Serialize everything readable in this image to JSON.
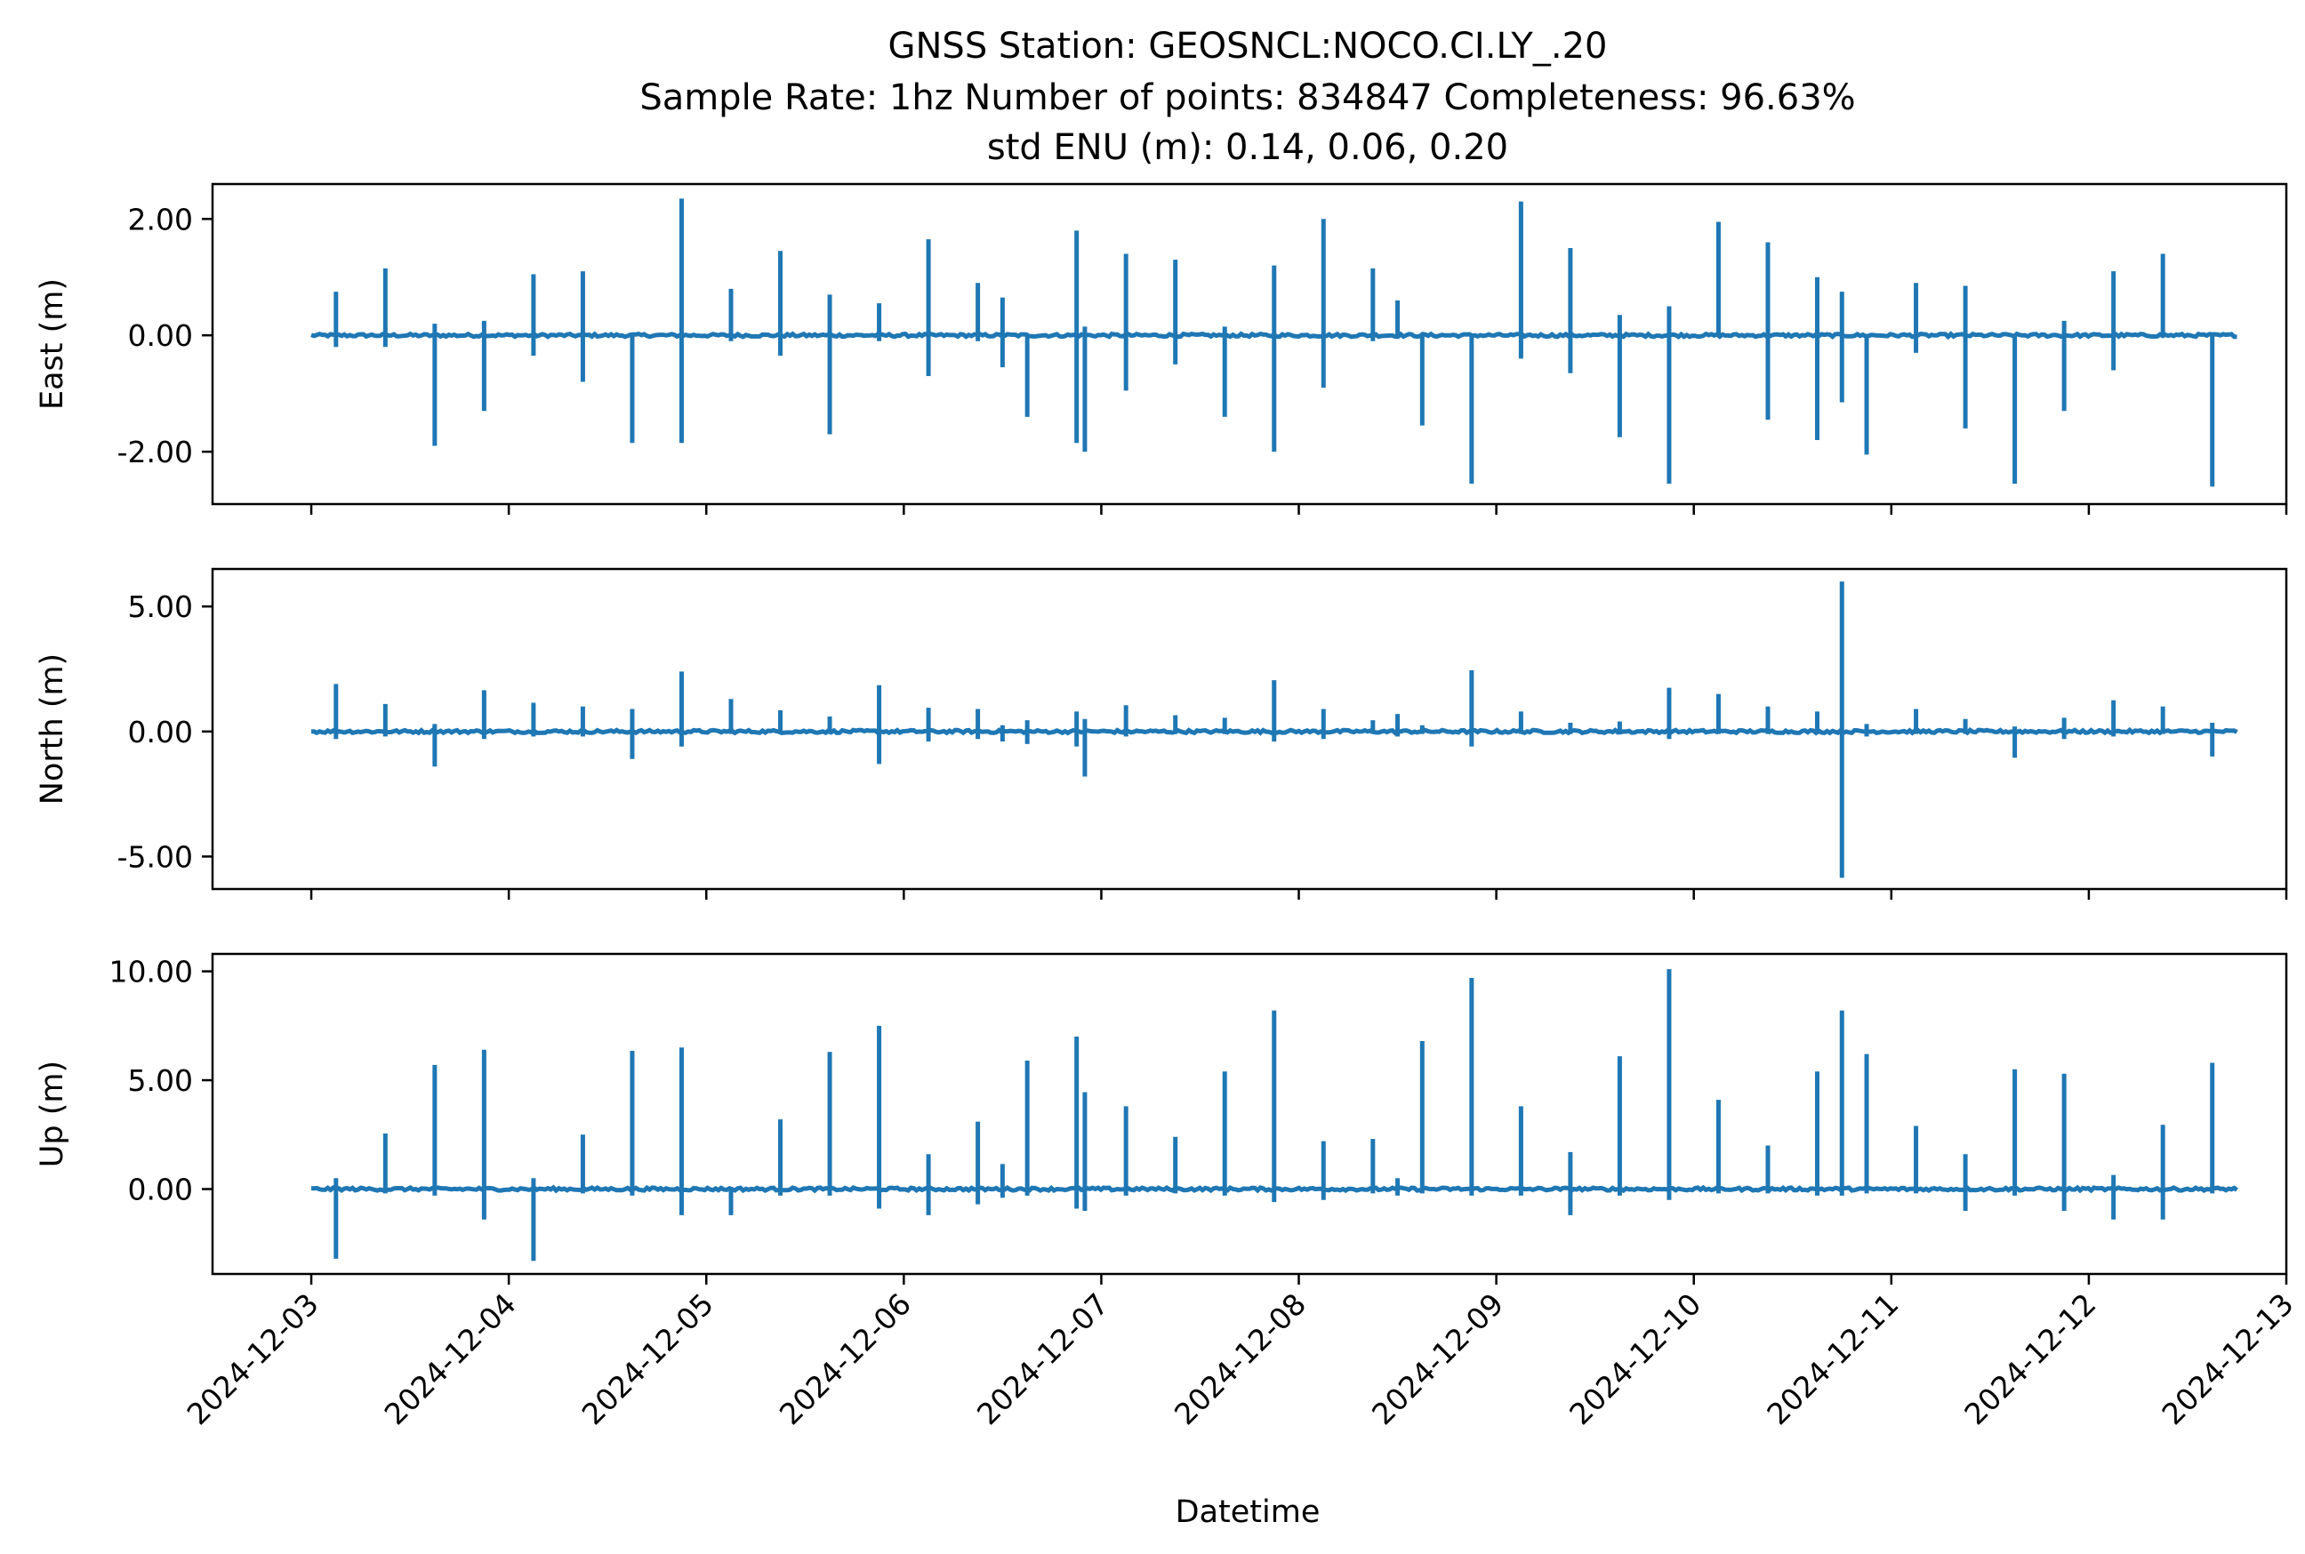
{
  "chart_data": {
    "type": "line",
    "title_lines": [
      "GNSS Station: GEOSNCL:NOCO.CI.LY_.20",
      "Sample Rate: 1hz   Number of points: 834847    Completeness:  96.63%",
      "std ENU (m):  0.14, 0.06, 0.20"
    ],
    "xlabel": "Datetime",
    "x_range": [
      "2024-12-02T12:00",
      "2024-12-13T00:00"
    ],
    "x_ticks": [
      "2024-12-03",
      "2024-12-04",
      "2024-12-05",
      "2024-12-06",
      "2024-12-07",
      "2024-12-08",
      "2024-12-09",
      "2024-12-10",
      "2024-12-11",
      "2024-12-12",
      "2024-12-13"
    ],
    "data_range": [
      "2024-12-03T00:00",
      "2024-12-12T18:00"
    ],
    "series_color": "#1f77b4",
    "grid": false,
    "panels": [
      {
        "ylabel": "East (m)",
        "ylim": [
          -2.9,
          2.6
        ],
        "yticks": [
          2.0,
          0.0,
          -2.0
        ],
        "ytick_labels": [
          "2.00",
          "0.00",
          "-2.00"
        ],
        "spikes": [
          {
            "t": "2024-12-03T03:00",
            "min": -0.2,
            "max": 0.75
          },
          {
            "t": "2024-12-03T09:00",
            "min": -0.2,
            "max": 1.15
          },
          {
            "t": "2024-12-03T15:00",
            "min": -1.9,
            "max": 0.2
          },
          {
            "t": "2024-12-03T21:00",
            "min": -1.3,
            "max": 0.25
          },
          {
            "t": "2024-12-04T03:00",
            "min": -0.35,
            "max": 1.05
          },
          {
            "t": "2024-12-04T09:00",
            "min": -0.8,
            "max": 1.1
          },
          {
            "t": "2024-12-04T15:00",
            "min": -1.85,
            "max": 0.0
          },
          {
            "t": "2024-12-04T21:00",
            "min": -1.85,
            "max": 2.35
          },
          {
            "t": "2024-12-05T03:00",
            "min": -0.1,
            "max": 0.8
          },
          {
            "t": "2024-12-05T09:00",
            "min": -0.35,
            "max": 1.45
          },
          {
            "t": "2024-12-05T15:00",
            "min": -1.7,
            "max": 0.7
          },
          {
            "t": "2024-12-05T21:00",
            "min": -0.1,
            "max": 0.55
          },
          {
            "t": "2024-12-06T03:00",
            "min": -0.7,
            "max": 1.65
          },
          {
            "t": "2024-12-06T09:00",
            "min": -0.1,
            "max": 0.9
          },
          {
            "t": "2024-12-06T12:00",
            "min": -0.55,
            "max": 0.65
          },
          {
            "t": "2024-12-06T15:00",
            "min": -1.4,
            "max": 0.0
          },
          {
            "t": "2024-12-06T21:00",
            "min": -1.85,
            "max": 1.8
          },
          {
            "t": "2024-12-06T22:00",
            "min": -2.0,
            "max": 0.15
          },
          {
            "t": "2024-12-07T03:00",
            "min": -0.95,
            "max": 1.4
          },
          {
            "t": "2024-12-07T09:00",
            "min": -0.5,
            "max": 1.3
          },
          {
            "t": "2024-12-07T15:00",
            "min": -1.4,
            "max": 0.15
          },
          {
            "t": "2024-12-07T21:00",
            "min": -2.0,
            "max": 1.2
          },
          {
            "t": "2024-12-08T03:00",
            "min": -0.9,
            "max": 2.0
          },
          {
            "t": "2024-12-08T09:00",
            "min": -0.1,
            "max": 1.15
          },
          {
            "t": "2024-12-08T12:00",
            "min": 0.0,
            "max": 0.6
          },
          {
            "t": "2024-12-08T15:00",
            "min": -1.55,
            "max": 0.0
          },
          {
            "t": "2024-12-08T21:00",
            "min": -2.55,
            "max": 0.0
          },
          {
            "t": "2024-12-09T03:00",
            "min": -0.4,
            "max": 2.3
          },
          {
            "t": "2024-12-09T09:00",
            "min": -0.65,
            "max": 1.5
          },
          {
            "t": "2024-12-09T15:00",
            "min": -1.75,
            "max": 0.35
          },
          {
            "t": "2024-12-09T21:00",
            "min": -2.55,
            "max": 0.5
          },
          {
            "t": "2024-12-10T03:00",
            "min": 0.0,
            "max": 1.95
          },
          {
            "t": "2024-12-10T09:00",
            "min": -1.45,
            "max": 1.6
          },
          {
            "t": "2024-12-10T15:00",
            "min": -1.8,
            "max": 1.0
          },
          {
            "t": "2024-12-10T18:00",
            "min": -1.15,
            "max": 0.75
          },
          {
            "t": "2024-12-10T21:00",
            "min": -2.05,
            "max": 0.0
          },
          {
            "t": "2024-12-11T03:00",
            "min": -0.3,
            "max": 0.9
          },
          {
            "t": "2024-12-11T09:00",
            "min": -1.6,
            "max": 0.85
          },
          {
            "t": "2024-12-11T15:00",
            "min": -2.55,
            "max": 0.0
          },
          {
            "t": "2024-12-11T21:00",
            "min": -1.3,
            "max": 0.25
          },
          {
            "t": "2024-12-12T03:00",
            "min": -0.6,
            "max": 1.1
          },
          {
            "t": "2024-12-12T09:00",
            "min": 0.0,
            "max": 1.4
          },
          {
            "t": "2024-12-12T15:00",
            "min": -2.6,
            "max": 0.05
          }
        ]
      },
      {
        "ylabel": "North (m)",
        "ylim": [
          -6.3,
          6.5
        ],
        "yticks": [
          5.0,
          0.0,
          -5.0
        ],
        "ytick_labels": [
          "5.00",
          "0.00",
          "-5.00"
        ],
        "spikes": [
          {
            "t": "2024-12-03T03:00",
            "min": -0.3,
            "max": 1.9
          },
          {
            "t": "2024-12-03T09:00",
            "min": -0.2,
            "max": 1.1
          },
          {
            "t": "2024-12-03T15:00",
            "min": -1.4,
            "max": 0.3
          },
          {
            "t": "2024-12-03T21:00",
            "min": -0.3,
            "max": 1.65
          },
          {
            "t": "2024-12-04T03:00",
            "min": -0.2,
            "max": 1.15
          },
          {
            "t": "2024-12-04T09:00",
            "min": -0.2,
            "max": 1.0
          },
          {
            "t": "2024-12-04T15:00",
            "min": -1.1,
            "max": 0.9
          },
          {
            "t": "2024-12-04T21:00",
            "min": -0.6,
            "max": 2.4
          },
          {
            "t": "2024-12-05T03:00",
            "min": -0.1,
            "max": 1.3
          },
          {
            "t": "2024-12-05T09:00",
            "min": -0.1,
            "max": 0.85
          },
          {
            "t": "2024-12-05T15:00",
            "min": -0.1,
            "max": 0.6
          },
          {
            "t": "2024-12-05T21:00",
            "min": -1.3,
            "max": 1.85
          },
          {
            "t": "2024-12-06T03:00",
            "min": -0.4,
            "max": 0.95
          },
          {
            "t": "2024-12-06T09:00",
            "min": -0.3,
            "max": 0.9
          },
          {
            "t": "2024-12-06T12:00",
            "min": -0.4,
            "max": 0.25
          },
          {
            "t": "2024-12-06T15:00",
            "min": -0.5,
            "max": 0.45
          },
          {
            "t": "2024-12-06T21:00",
            "min": -0.6,
            "max": 0.8
          },
          {
            "t": "2024-12-06T22:00",
            "min": -1.8,
            "max": 0.5
          },
          {
            "t": "2024-12-07T03:00",
            "min": -0.2,
            "max": 1.05
          },
          {
            "t": "2024-12-07T09:00",
            "min": -0.1,
            "max": 0.65
          },
          {
            "t": "2024-12-07T15:00",
            "min": -0.1,
            "max": 0.55
          },
          {
            "t": "2024-12-07T21:00",
            "min": -0.4,
            "max": 2.05
          },
          {
            "t": "2024-12-08T03:00",
            "min": -0.3,
            "max": 0.9
          },
          {
            "t": "2024-12-08T09:00",
            "min": -0.1,
            "max": 0.45
          },
          {
            "t": "2024-12-08T12:00",
            "min": -0.2,
            "max": 0.7
          },
          {
            "t": "2024-12-08T15:00",
            "min": -0.1,
            "max": 0.25
          },
          {
            "t": "2024-12-08T21:00",
            "min": -0.6,
            "max": 2.45
          },
          {
            "t": "2024-12-09T03:00",
            "min": -0.1,
            "max": 0.8
          },
          {
            "t": "2024-12-09T09:00",
            "min": -0.1,
            "max": 0.35
          },
          {
            "t": "2024-12-09T15:00",
            "min": 0.0,
            "max": 0.4
          },
          {
            "t": "2024-12-09T21:00",
            "min": -0.3,
            "max": 1.75
          },
          {
            "t": "2024-12-10T03:00",
            "min": -0.1,
            "max": 1.5
          },
          {
            "t": "2024-12-10T09:00",
            "min": -0.1,
            "max": 1.0
          },
          {
            "t": "2024-12-10T15:00",
            "min": -0.1,
            "max": 0.8
          },
          {
            "t": "2024-12-10T18:00",
            "min": -5.85,
            "max": 6.0
          },
          {
            "t": "2024-12-10T21:00",
            "min": -0.2,
            "max": 0.3
          },
          {
            "t": "2024-12-11T03:00",
            "min": -0.1,
            "max": 0.9
          },
          {
            "t": "2024-12-11T09:00",
            "min": -0.1,
            "max": 0.5
          },
          {
            "t": "2024-12-11T15:00",
            "min": -1.05,
            "max": 0.2
          },
          {
            "t": "2024-12-11T21:00",
            "min": -0.3,
            "max": 0.55
          },
          {
            "t": "2024-12-12T03:00",
            "min": -0.2,
            "max": 1.25
          },
          {
            "t": "2024-12-12T09:00",
            "min": -0.1,
            "max": 1.0
          },
          {
            "t": "2024-12-12T15:00",
            "min": -1.0,
            "max": 0.35
          }
        ]
      },
      {
        "ylabel": "Up (m)",
        "ylim": [
          -3.9,
          10.8
        ],
        "yticks": [
          10.0,
          5.0,
          0.0
        ],
        "ytick_labels": [
          "10.00",
          "5.00",
          "0.00"
        ],
        "spikes": [
          {
            "t": "2024-12-03T03:00",
            "min": -3.2,
            "max": 0.5
          },
          {
            "t": "2024-12-03T09:00",
            "min": -0.2,
            "max": 2.55
          },
          {
            "t": "2024-12-03T15:00",
            "min": -0.3,
            "max": 5.7
          },
          {
            "t": "2024-12-03T21:00",
            "min": -1.4,
            "max": 6.4
          },
          {
            "t": "2024-12-04T03:00",
            "min": -3.3,
            "max": 0.5
          },
          {
            "t": "2024-12-04T09:00",
            "min": -0.2,
            "max": 2.5
          },
          {
            "t": "2024-12-04T15:00",
            "min": -0.3,
            "max": 6.35
          },
          {
            "t": "2024-12-04T21:00",
            "min": -1.2,
            "max": 6.5
          },
          {
            "t": "2024-12-05T03:00",
            "min": -1.2,
            "max": 0.1
          },
          {
            "t": "2024-12-05T09:00",
            "min": -0.3,
            "max": 3.2
          },
          {
            "t": "2024-12-05T15:00",
            "min": -0.3,
            "max": 6.3
          },
          {
            "t": "2024-12-05T21:00",
            "min": -0.9,
            "max": 7.5
          },
          {
            "t": "2024-12-06T03:00",
            "min": -1.2,
            "max": 1.6
          },
          {
            "t": "2024-12-06T09:00",
            "min": -0.7,
            "max": 3.1
          },
          {
            "t": "2024-12-06T12:00",
            "min": -0.4,
            "max": 1.15
          },
          {
            "t": "2024-12-06T15:00",
            "min": -0.3,
            "max": 5.9
          },
          {
            "t": "2024-12-06T21:00",
            "min": -0.9,
            "max": 7.0
          },
          {
            "t": "2024-12-06T22:00",
            "min": -1.0,
            "max": 4.45
          },
          {
            "t": "2024-12-07T03:00",
            "min": -0.3,
            "max": 3.8
          },
          {
            "t": "2024-12-07T09:00",
            "min": -0.2,
            "max": 2.4
          },
          {
            "t": "2024-12-07T15:00",
            "min": -0.3,
            "max": 5.4
          },
          {
            "t": "2024-12-07T21:00",
            "min": -0.6,
            "max": 8.2
          },
          {
            "t": "2024-12-08T03:00",
            "min": -0.5,
            "max": 2.2
          },
          {
            "t": "2024-12-08T09:00",
            "min": -0.2,
            "max": 2.3
          },
          {
            "t": "2024-12-08T12:00",
            "min": -0.3,
            "max": 0.5
          },
          {
            "t": "2024-12-08T15:00",
            "min": -0.2,
            "max": 6.8
          },
          {
            "t": "2024-12-08T21:00",
            "min": -0.3,
            "max": 9.7
          },
          {
            "t": "2024-12-09T03:00",
            "min": -0.3,
            "max": 3.8
          },
          {
            "t": "2024-12-09T09:00",
            "min": -1.2,
            "max": 1.7
          },
          {
            "t": "2024-12-09T15:00",
            "min": -0.3,
            "max": 6.1
          },
          {
            "t": "2024-12-09T21:00",
            "min": -0.5,
            "max": 10.1
          },
          {
            "t": "2024-12-10T03:00",
            "min": -0.2,
            "max": 4.1
          },
          {
            "t": "2024-12-10T09:00",
            "min": -0.2,
            "max": 2.0
          },
          {
            "t": "2024-12-10T15:00",
            "min": -0.3,
            "max": 5.4
          },
          {
            "t": "2024-12-10T18:00",
            "min": -0.3,
            "max": 8.2
          },
          {
            "t": "2024-12-10T21:00",
            "min": -0.2,
            "max": 6.2
          },
          {
            "t": "2024-12-11T03:00",
            "min": -0.2,
            "max": 2.9
          },
          {
            "t": "2024-12-11T09:00",
            "min": -1.0,
            "max": 1.6
          },
          {
            "t": "2024-12-11T15:00",
            "min": -0.3,
            "max": 5.5
          },
          {
            "t": "2024-12-11T21:00",
            "min": -1.0,
            "max": 5.3
          },
          {
            "t": "2024-12-12T03:00",
            "min": -1.4,
            "max": 0.65
          },
          {
            "t": "2024-12-12T09:00",
            "min": -1.4,
            "max": 2.95
          },
          {
            "t": "2024-12-12T15:00",
            "min": -0.2,
            "max": 5.8
          }
        ]
      }
    ]
  }
}
